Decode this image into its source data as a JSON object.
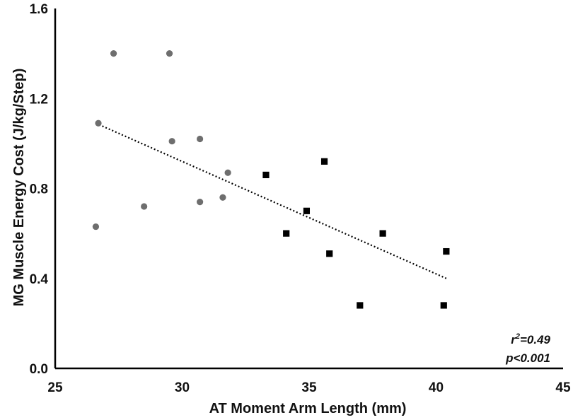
{
  "chart_data": {
    "type": "scatter",
    "title": "",
    "xlabel": "AT Moment Arm Length (mm)",
    "ylabel": "MG Muscle Energy Cost (J/kg/Step)",
    "xlim": [
      25,
      45
    ],
    "ylim": [
      0,
      1.6
    ],
    "x_ticks": [
      "25",
      "30",
      "35",
      "40",
      "45"
    ],
    "y_ticks": [
      "0.0",
      "0.4",
      "0.8",
      "1.2",
      "1.6"
    ],
    "grid": false,
    "legend": "none",
    "series": [
      {
        "marker": "circle",
        "color": "#6e6e6e",
        "points": [
          {
            "x": 27.3,
            "y": 1.4
          },
          {
            "x": 29.5,
            "y": 1.4
          },
          {
            "x": 26.7,
            "y": 1.09
          },
          {
            "x": 30.7,
            "y": 1.02
          },
          {
            "x": 29.6,
            "y": 1.01
          },
          {
            "x": 31.8,
            "y": 0.87
          },
          {
            "x": 31.6,
            "y": 0.76
          },
          {
            "x": 30.7,
            "y": 0.74
          },
          {
            "x": 28.5,
            "y": 0.72
          },
          {
            "x": 26.6,
            "y": 0.63
          }
        ]
      },
      {
        "marker": "square",
        "color": "#000000",
        "points": [
          {
            "x": 35.6,
            "y": 0.92
          },
          {
            "x": 33.3,
            "y": 0.86
          },
          {
            "x": 34.9,
            "y": 0.7
          },
          {
            "x": 34.1,
            "y": 0.6
          },
          {
            "x": 37.9,
            "y": 0.6
          },
          {
            "x": 35.8,
            "y": 0.51
          },
          {
            "x": 40.4,
            "y": 0.52
          },
          {
            "x": 37.0,
            "y": 0.28
          },
          {
            "x": 40.3,
            "y": 0.28
          }
        ]
      }
    ],
    "trendline": {
      "style": "dotted",
      "color": "#000000",
      "x": [
        26.6,
        40.4
      ],
      "y": [
        1.09,
        0.4
      ]
    },
    "annotations": {
      "r_prefix": "r",
      "r_superscript": "2",
      "r_value": "=0.49",
      "p_value": "p<0.001"
    }
  }
}
